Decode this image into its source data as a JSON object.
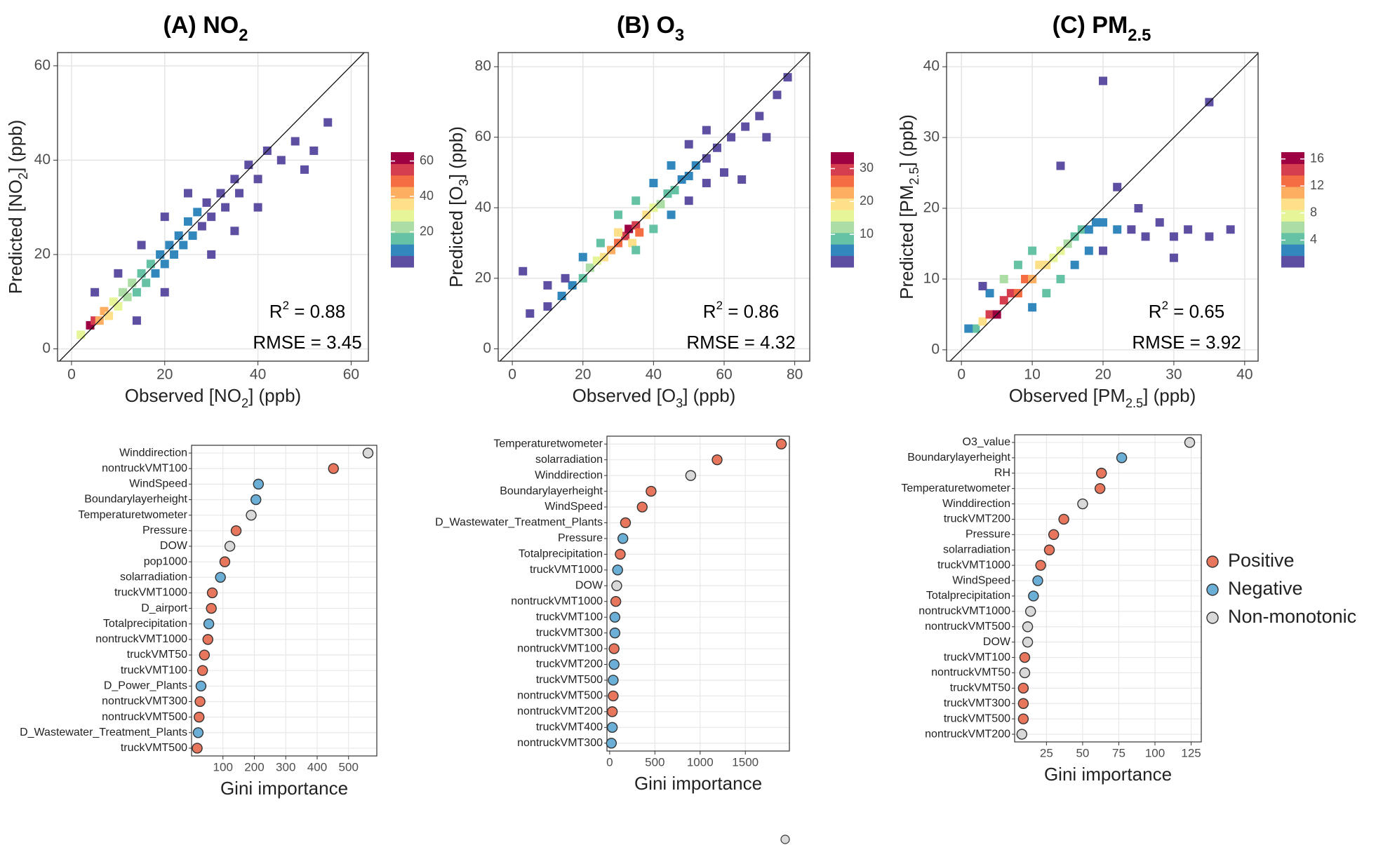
{
  "chart_data": [
    {
      "type": "heatmap",
      "title": [
        {
          "text": "(A) NO"
        },
        {
          "text": "2",
          "sub": true
        }
      ],
      "x_label": [
        {
          "text": "Observed [NO"
        },
        {
          "text": "2",
          "sub": true
        },
        {
          "text": "] (ppb)"
        }
      ],
      "y_label": [
        {
          "text": "Predicted [NO"
        },
        {
          "text": "2",
          "sub": true
        },
        {
          "text": "] (ppb)"
        }
      ],
      "x": [
        2,
        4,
        5,
        6,
        7,
        8,
        9,
        10,
        11,
        12,
        13,
        14,
        15,
        16,
        17,
        18,
        19,
        20,
        21,
        22,
        23,
        24,
        25,
        26,
        27,
        28,
        29,
        30,
        32,
        33,
        35,
        36,
        38,
        40,
        42,
        45,
        48,
        52,
        55,
        10,
        15,
        20,
        25,
        14,
        20,
        30,
        35,
        40,
        5,
        50
      ],
      "y": [
        3,
        5,
        6,
        6,
        8,
        7,
        10,
        9,
        12,
        11,
        14,
        12,
        16,
        14,
        18,
        16,
        20,
        18,
        22,
        20,
        24,
        22,
        27,
        24,
        29,
        26,
        31,
        28,
        33,
        30,
        36,
        33,
        39,
        36,
        42,
        40,
        44,
        42,
        48,
        16,
        22,
        28,
        33,
        6,
        12,
        20,
        25,
        30,
        12,
        38
      ],
      "values": [
        30,
        60,
        55,
        45,
        40,
        35,
        30,
        28,
        25,
        22,
        20,
        18,
        17,
        15,
        14,
        12,
        12,
        11,
        10,
        9,
        9,
        8,
        8,
        7,
        7,
        6,
        6,
        5,
        5,
        4,
        4,
        3,
        3,
        2,
        2,
        1,
        1,
        1,
        1,
        3,
        3,
        2,
        2,
        3,
        2,
        1,
        1,
        1,
        2,
        1
      ],
      "xlim": [
        -3,
        63.7
      ],
      "ylim": [
        -2.6,
        62.8
      ],
      "xticks": [
        0,
        20,
        40,
        60
      ],
      "yticks": [
        0,
        20,
        40,
        60
      ],
      "grid": true,
      "colorbar": {
        "lim": [
          0,
          65
        ],
        "ticks": [
          20,
          40,
          60
        ]
      },
      "colormap": [
        "#5e4fa2",
        "#3288bd",
        "#66c2a5",
        "#abdda4",
        "#e6f598",
        "#fee08b",
        "#fdae61",
        "#f46d43",
        "#d53e4f",
        "#9e0142"
      ],
      "r2_label": [
        {
          "text": "R"
        },
        {
          "text": "2",
          "sup": true
        },
        {
          "text": " = "
        }
      ],
      "r2": 0.88,
      "rmse_label": "RMSE = ",
      "rmse": 3.45
    },
    {
      "type": "dot",
      "categories": [
        "Winddirection",
        "nontruckVMT100",
        "WindSpeed",
        "Boundarylayerheight",
        "Temperaturetwometer",
        "Pressure",
        "DOW",
        "pop1000",
        "solarradiation",
        "truckVMT1000",
        "D_airport",
        "Totalprecipitation",
        "nontruckVMT1000",
        "truckVMT50",
        "truckVMT100",
        "D_Power_Plants",
        "nontruckVMT300",
        "nontruckVMT500",
        "D_Wastewater_Treatment_Plants",
        "truckVMT500"
      ],
      "values": [
        562,
        452,
        213,
        205,
        190,
        142,
        122,
        106,
        92,
        66,
        63,
        55,
        52,
        41,
        35,
        30,
        27,
        24,
        21,
        18
      ],
      "groups": [
        "Non-monotonic",
        "Positive",
        "Negative",
        "Negative",
        "Non-monotonic",
        "Positive",
        "Non-monotonic",
        "Positive",
        "Negative",
        "Positive",
        "Positive",
        "Negative",
        "Positive",
        "Positive",
        "Positive",
        "Negative",
        "Positive",
        "Positive",
        "Negative",
        "Positive"
      ],
      "x_label": "Gini importance",
      "xlim": [
        0,
        590
      ],
      "xticks": [
        100,
        200,
        300,
        400,
        500
      ],
      "grid": true
    },
    {
      "type": "heatmap",
      "title": [
        {
          "text": "(B) O"
        },
        {
          "text": "3",
          "sub": true
        }
      ],
      "x_label": [
        {
          "text": "Observed [O"
        },
        {
          "text": "3",
          "sub": true
        },
        {
          "text": "] (ppb)"
        }
      ],
      "y_label": [
        {
          "text": "Predicted [O"
        },
        {
          "text": "3",
          "sub": true
        },
        {
          "text": "] (ppb)"
        }
      ],
      "x": [
        10,
        14,
        17,
        20,
        22,
        24,
        26,
        28,
        30,
        32,
        33,
        35,
        36,
        30,
        34,
        38,
        40,
        42,
        44,
        46,
        48,
        50,
        52,
        55,
        58,
        62,
        66,
        70,
        75,
        78,
        25,
        20,
        15,
        35,
        40,
        45,
        50,
        55,
        60,
        30,
        35,
        40,
        45,
        50,
        55,
        5,
        3,
        10,
        65,
        72
      ],
      "y": [
        12,
        15,
        18,
        20,
        23,
        25,
        26,
        28,
        30,
        32,
        34,
        35,
        33,
        33,
        30,
        38,
        40,
        41,
        44,
        45,
        48,
        49,
        52,
        54,
        57,
        60,
        63,
        66,
        72,
        77,
        30,
        26,
        20,
        28,
        34,
        38,
        42,
        47,
        50,
        38,
        42,
        47,
        52,
        58,
        62,
        10,
        22,
        18,
        48,
        60
      ],
      "values": [
        2,
        4,
        6,
        9,
        12,
        15,
        18,
        22,
        26,
        30,
        32,
        28,
        25,
        20,
        18,
        20,
        15,
        12,
        10,
        8,
        6,
        5,
        4,
        3,
        2,
        2,
        1,
        1,
        1,
        1,
        8,
        5,
        3,
        10,
        8,
        5,
        3,
        2,
        1,
        10,
        8,
        6,
        4,
        3,
        2,
        1,
        1,
        1,
        1,
        1
      ],
      "xlim": [
        -4,
        84.25
      ],
      "ylim": [
        -3.5,
        84
      ],
      "xticks": [
        0,
        20,
        40,
        60,
        80
      ],
      "yticks": [
        0,
        20,
        40,
        60,
        80
      ],
      "grid": true,
      "colorbar": {
        "lim": [
          0,
          35
        ],
        "ticks": [
          10,
          20,
          30
        ]
      },
      "colormap": [
        "#5e4fa2",
        "#3288bd",
        "#66c2a5",
        "#abdda4",
        "#e6f598",
        "#fee08b",
        "#fdae61",
        "#f46d43",
        "#d53e4f",
        "#9e0142"
      ],
      "r2_label": [
        {
          "text": "R"
        },
        {
          "text": "2",
          "sup": true
        },
        {
          "text": " = "
        }
      ],
      "r2": 0.86,
      "rmse_label": "RMSE = ",
      "rmse": 4.32
    },
    {
      "type": "dot",
      "categories": [
        "Temperaturetwometer",
        "solarradiation",
        "Winddirection",
        "Boundarylayerheight",
        "WindSpeed",
        "D_Wastewater_Treatment_Plants",
        "Pressure",
        "Totalprecipitation",
        "truckVMT1000",
        "DOW",
        "nontruckVMT1000",
        "truckVMT100",
        "truckVMT300",
        "nontruckVMT100",
        "truckVMT200",
        "truckVMT500",
        "nontruckVMT500",
        "nontruckVMT200",
        "truckVMT400",
        "nontruckVMT300"
      ],
      "values": [
        1898,
        1188,
        896,
        458,
        360,
        175,
        146,
        117,
        88,
        78,
        68,
        58,
        58,
        49,
        49,
        39,
        39,
        29,
        29,
        19
      ],
      "groups": [
        "Positive",
        "Positive",
        "Non-monotonic",
        "Positive",
        "Positive",
        "Positive",
        "Negative",
        "Positive",
        "Negative",
        "Non-monotonic",
        "Positive",
        "Negative",
        "Negative",
        "Positive",
        "Negative",
        "Negative",
        "Positive",
        "Positive",
        "Negative",
        "Negative"
      ],
      "x_label": "Gini importance",
      "xlim": [
        -30,
        1987
      ],
      "xticks": [
        0,
        500,
        1000,
        1500
      ],
      "grid": true
    },
    {
      "type": "heatmap",
      "title": [
        {
          "text": "(C) PM"
        },
        {
          "text": "2.5",
          "sub": true
        }
      ],
      "x_label": [
        {
          "text": "Observed [PM"
        },
        {
          "text": "2.5",
          "sub": true
        },
        {
          "text": "] (ppb)"
        }
      ],
      "y_label": [
        {
          "text": "Predicted [PM"
        },
        {
          "text": "2.5",
          "sub": true
        },
        {
          "text": "] (ppb)"
        }
      ],
      "x": [
        2,
        3,
        4,
        5,
        6,
        7,
        8,
        9,
        10,
        11,
        12,
        13,
        14,
        15,
        16,
        17,
        18,
        19,
        20,
        22,
        24,
        26,
        28,
        30,
        32,
        35,
        38,
        6,
        8,
        10,
        4,
        12,
        14,
        16,
        18,
        10,
        20,
        20,
        14,
        35,
        22,
        3,
        1,
        25,
        30
      ],
      "y": [
        3,
        4,
        5,
        5,
        7,
        8,
        8,
        10,
        10,
        12,
        12,
        13,
        14,
        15,
        16,
        17,
        17,
        18,
        18,
        17,
        17,
        16,
        18,
        16,
        17,
        16,
        17,
        10,
        12,
        14,
        8,
        8,
        10,
        12,
        14,
        6,
        14,
        38,
        26,
        35,
        23,
        9,
        3,
        20,
        13
      ],
      "values": [
        5,
        10,
        14,
        16,
        15,
        14,
        13,
        12,
        11,
        10,
        9,
        8,
        7,
        6,
        5,
        4,
        3,
        3,
        2,
        2,
        1,
        1,
        1,
        1,
        1,
        1,
        1,
        6,
        5,
        4,
        3,
        5,
        4,
        3,
        2,
        3,
        1,
        1,
        1,
        1,
        1,
        1,
        2,
        1,
        1
      ],
      "xlim": [
        -2.1,
        41.9
      ],
      "ylim": [
        -1.6,
        42
      ],
      "xticks": [
        0,
        10,
        20,
        30,
        40
      ],
      "yticks": [
        0,
        10,
        20,
        30,
        40
      ],
      "grid": true,
      "colorbar": {
        "lim": [
          0,
          17
        ],
        "ticks": [
          4,
          8,
          12,
          16
        ]
      },
      "colormap": [
        "#5e4fa2",
        "#3288bd",
        "#66c2a5",
        "#abdda4",
        "#e6f598",
        "#fee08b",
        "#fdae61",
        "#f46d43",
        "#d53e4f",
        "#9e0142"
      ],
      "r2_label": [
        {
          "text": "R"
        },
        {
          "text": "2",
          "sup": true
        },
        {
          "text": " = "
        }
      ],
      "r2": 0.65,
      "rmse_label": "RMSE = ",
      "rmse": 3.92
    },
    {
      "type": "dot",
      "categories": [
        "O3_value",
        "Boundarylayerheight",
        "RH",
        "Temperaturetwometer",
        "Winddirection",
        "truckVMT200",
        "Pressure",
        "solarradiation",
        "truckVMT1000",
        "WindSpeed",
        "Totalprecipitation",
        "nontruckVMT1000",
        "nontruckVMT500",
        "DOW",
        "truckVMT100",
        "nontruckVMT50",
        "truckVMT50",
        "truckVMT300",
        "truckVMT500",
        "nontruckVMT200"
      ],
      "values": [
        124,
        77,
        63,
        62,
        50,
        37,
        30,
        27,
        21,
        19,
        16,
        14,
        12,
        12,
        10,
        10,
        9,
        9,
        9,
        8
      ],
      "groups": [
        "Non-monotonic",
        "Negative",
        "Positive",
        "Positive",
        "Non-monotonic",
        "Positive",
        "Positive",
        "Positive",
        "Positive",
        "Negative",
        "Negative",
        "Non-monotonic",
        "Non-monotonic",
        "Non-monotonic",
        "Positive",
        "Non-monotonic",
        "Positive",
        "Positive",
        "Positive",
        "Non-monotonic"
      ],
      "x_label": "Gini importance",
      "xlim": [
        3,
        132
      ],
      "xticks": [
        25,
        50,
        75,
        100,
        125
      ],
      "grid": true
    }
  ],
  "legend": {
    "items": [
      {
        "name": "Positive",
        "color": "#e8765c"
      },
      {
        "name": "Negative",
        "color": "#6baed6"
      },
      {
        "name": "Non-monotonic",
        "color": "#d9d9d9"
      }
    ]
  }
}
